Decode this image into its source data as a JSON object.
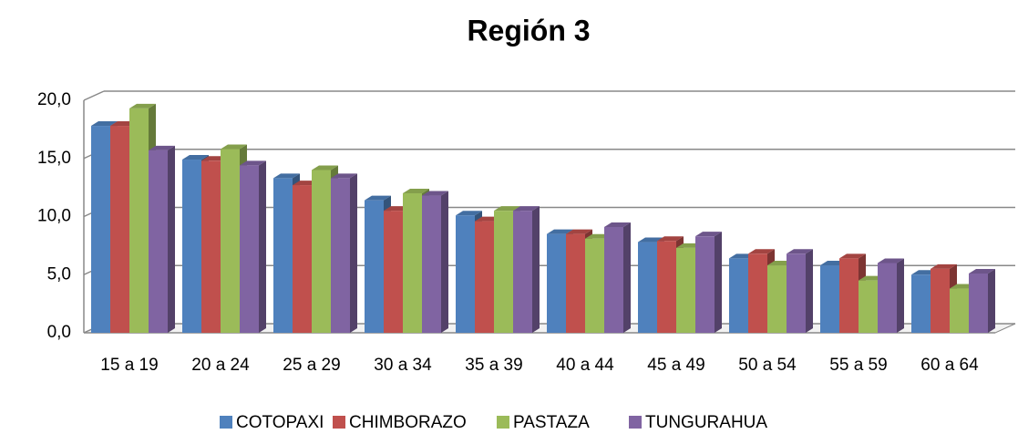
{
  "chart_data": {
    "type": "bar3d",
    "title": "Región 3",
    "categories": [
      "15 a 19",
      "20 a 24",
      "25 a 29",
      "30 a 34",
      "35 a 39",
      "40 a 44",
      "45 a 49",
      "50 a 54",
      "55 a 59",
      "60 a 64"
    ],
    "series": [
      {
        "name": "COTOPAXI",
        "color": "#4f81bd",
        "values": [
          17.8,
          14.9,
          13.3,
          11.4,
          10.1,
          8.5,
          7.8,
          6.4,
          5.8,
          5.0
        ]
      },
      {
        "name": "CHIMBORAZO",
        "color": "#c0504d",
        "values": [
          17.8,
          14.8,
          12.7,
          10.5,
          9.6,
          8.5,
          7.9,
          6.8,
          6.4,
          5.5
        ]
      },
      {
        "name": "PASTAZA",
        "color": "#9bbb59",
        "values": [
          19.3,
          15.8,
          14.0,
          12.0,
          10.5,
          8.1,
          7.3,
          5.8,
          4.5,
          3.8
        ]
      },
      {
        "name": "TUNGURAHUA",
        "color": "#8064a2",
        "values": [
          15.7,
          14.4,
          13.3,
          11.8,
          10.5,
          9.1,
          8.3,
          6.8,
          6.0,
          5.1
        ]
      }
    ],
    "ylim": [
      0,
      20
    ],
    "yticks": [
      {
        "value": 0,
        "label": "0,0"
      },
      {
        "value": 5,
        "label": "5,0"
      },
      {
        "value": 10,
        "label": "10,0"
      },
      {
        "value": 15,
        "label": "15,0"
      },
      {
        "value": 20,
        "label": "20,0"
      }
    ],
    "grid": true,
    "legend": "bottom"
  }
}
